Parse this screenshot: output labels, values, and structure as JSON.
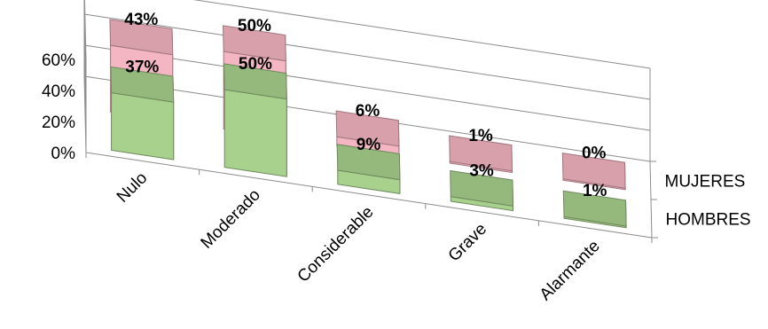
{
  "chart_data": {
    "type": "bar",
    "subtype": "3d-column",
    "categories": [
      "Nulo",
      "Moderado",
      "Considerable",
      "Grave",
      "Alarmante"
    ],
    "series": [
      {
        "name": "HOMBRES",
        "values": [
          37,
          50,
          9,
          3,
          1
        ],
        "labels": [
          "37%",
          "50%",
          "9%",
          "3%",
          "1%"
        ],
        "color": "#a9d18e"
      },
      {
        "name": "MUJERES",
        "values": [
          43,
          50,
          6,
          1,
          0
        ],
        "labels": [
          "43%",
          "50%",
          "6%",
          "1%",
          "0%"
        ],
        "color": "#f4b6c2"
      }
    ],
    "yticks": [
      "0%",
      "20%",
      "40%",
      "60%"
    ],
    "ylim": [
      0,
      60
    ],
    "grid": true,
    "title": "",
    "xlabel": "",
    "ylabel": ""
  }
}
